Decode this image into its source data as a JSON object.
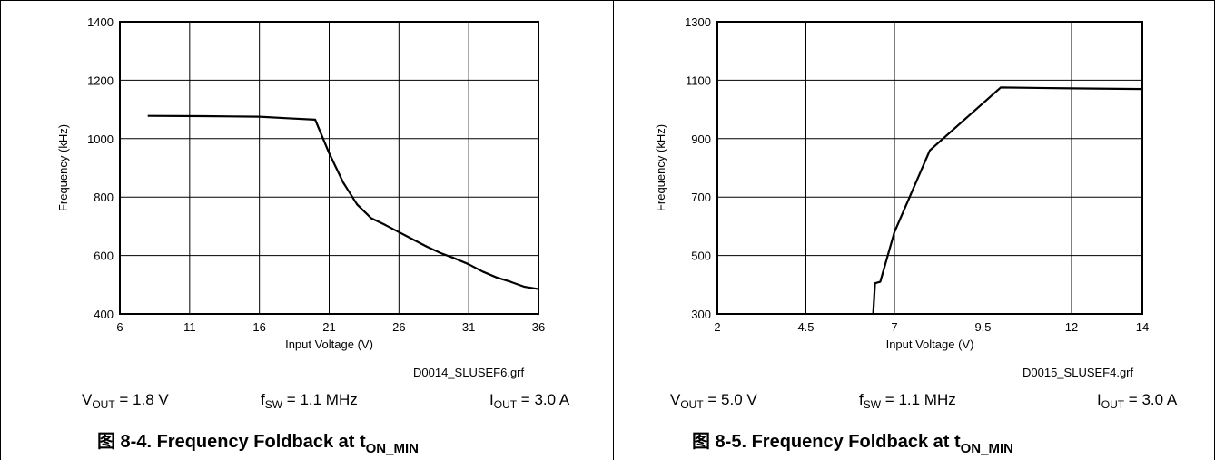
{
  "chart_data": [
    {
      "type": "line",
      "xlabel": "Input Voltage (V)",
      "ylabel": "Frequency (kHz)",
      "xlim": [
        6,
        36
      ],
      "ylim": [
        400,
        1400
      ],
      "xticks": [
        6,
        11,
        16,
        21,
        26,
        31,
        36
      ],
      "yticks": [
        400,
        600,
        800,
        1000,
        1200,
        1400
      ],
      "grid": true,
      "series": [
        {
          "x": [
            8,
            12,
            16,
            18,
            20,
            21,
            22,
            23,
            24,
            25,
            26,
            27,
            28,
            29,
            30,
            31,
            32,
            33,
            34,
            35,
            36
          ],
          "y": [
            1078,
            1077,
            1075,
            1070,
            1065,
            950,
            850,
            775,
            728,
            705,
            680,
            655,
            630,
            608,
            590,
            570,
            545,
            525,
            510,
            493,
            485
          ]
        }
      ],
      "file_label": "D0014_SLUSEF6.grf",
      "conditions": {
        "vout": {
          "main": "V",
          "sub": "OUT",
          "value": " = 1.8 V"
        },
        "fsw": {
          "main": "f",
          "sub": "SW",
          "value": " = 1.1 MHz"
        },
        "iout": {
          "main": "I",
          "sub": "OUT",
          "value": " = 3.0 A"
        }
      },
      "caption": {
        "main": "图 8-4. Frequency Foldback at t",
        "sub": "ON_MIN"
      }
    },
    {
      "type": "line",
      "xlabel": "Input Voltage (V)",
      "ylabel": "Frequency  (kHz)",
      "xlim": [
        2,
        14
      ],
      "ylim": [
        300,
        1300
      ],
      "xticks": [
        2,
        4.5,
        7,
        9.5,
        12,
        14
      ],
      "yticks": [
        300,
        500,
        700,
        900,
        1100,
        1300
      ],
      "grid": true,
      "series": [
        {
          "x": [
            6.4,
            6.45,
            6.6,
            7.0,
            8.0,
            10.0,
            12.0,
            14.0
          ],
          "y": [
            300,
            405,
            410,
            580,
            860,
            1075,
            1072,
            1070
          ]
        }
      ],
      "file_label": "D0015_SLUSEF4.grf",
      "conditions": {
        "vout": {
          "main": "V",
          "sub": "OUT",
          "value": " = 5.0 V"
        },
        "fsw": {
          "main": "f",
          "sub": "SW",
          "value": " = 1.1 MHz"
        },
        "iout": {
          "main": "I",
          "sub": "OUT",
          "value": " = 3.0 A"
        }
      },
      "caption": {
        "main": "图 8-5. Frequency Foldback at t",
        "sub": "ON_MIN"
      }
    }
  ]
}
